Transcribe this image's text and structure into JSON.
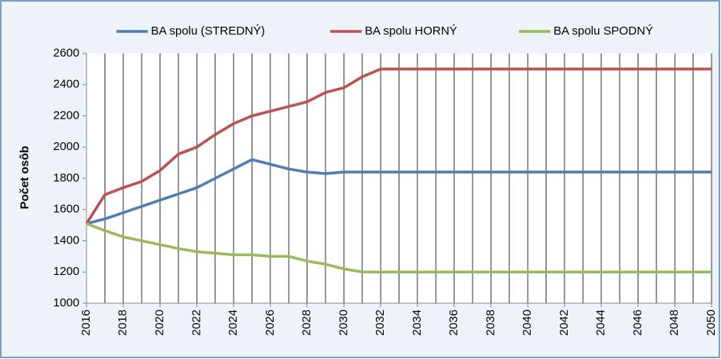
{
  "chart_data": {
    "type": "line",
    "ylabel": "Počet osôb",
    "x": [
      2016,
      2017,
      2018,
      2019,
      2020,
      2021,
      2022,
      2023,
      2024,
      2025,
      2026,
      2027,
      2028,
      2029,
      2030,
      2031,
      2032,
      2033,
      2034,
      2035,
      2036,
      2037,
      2038,
      2039,
      2040,
      2041,
      2042,
      2043,
      2044,
      2045,
      2046,
      2047,
      2048,
      2049,
      2050
    ],
    "xlim": [
      2016,
      2050
    ],
    "xticks": [
      2016,
      2018,
      2020,
      2022,
      2024,
      2026,
      2028,
      2030,
      2032,
      2034,
      2036,
      2038,
      2040,
      2042,
      2044,
      2046,
      2048,
      2050
    ],
    "ylim": [
      1000,
      2600
    ],
    "yticks": [
      1000,
      1200,
      1400,
      1600,
      1800,
      2000,
      2200,
      2400,
      2600
    ],
    "grid": true,
    "legend": "top",
    "series": [
      {
        "name": "BA spolu (STREDNÝ)",
        "color": "#4a7ebb",
        "values": [
          1510,
          1540,
          1580,
          1620,
          1660,
          1700,
          1740,
          1800,
          1860,
          1920,
          1890,
          1860,
          1840,
          1830,
          1840,
          1840,
          1840,
          1840,
          1840,
          1840,
          1840,
          1840,
          1840,
          1840,
          1840,
          1840,
          1840,
          1840,
          1840,
          1840,
          1840,
          1840,
          1840,
          1840,
          1840
        ]
      },
      {
        "name": "BA spolu HORNÝ",
        "color": "#c0504d",
        "values": [
          1510,
          1695,
          1740,
          1780,
          1850,
          1955,
          2000,
          2080,
          2150,
          2200,
          2230,
          2260,
          2290,
          2350,
          2380,
          2450,
          2500,
          2500,
          2500,
          2500,
          2500,
          2500,
          2500,
          2500,
          2500,
          2500,
          2500,
          2500,
          2500,
          2500,
          2500,
          2500,
          2500,
          2500,
          2500
        ]
      },
      {
        "name": "BA spolu SPODNÝ",
        "color": "#9bbb59",
        "values": [
          1510,
          1465,
          1425,
          1400,
          1375,
          1350,
          1330,
          1320,
          1310,
          1310,
          1300,
          1300,
          1270,
          1250,
          1220,
          1200,
          1200,
          1200,
          1200,
          1200,
          1200,
          1200,
          1200,
          1200,
          1200,
          1200,
          1200,
          1200,
          1200,
          1200,
          1200,
          1200,
          1200,
          1200,
          1200
        ]
      }
    ]
  }
}
